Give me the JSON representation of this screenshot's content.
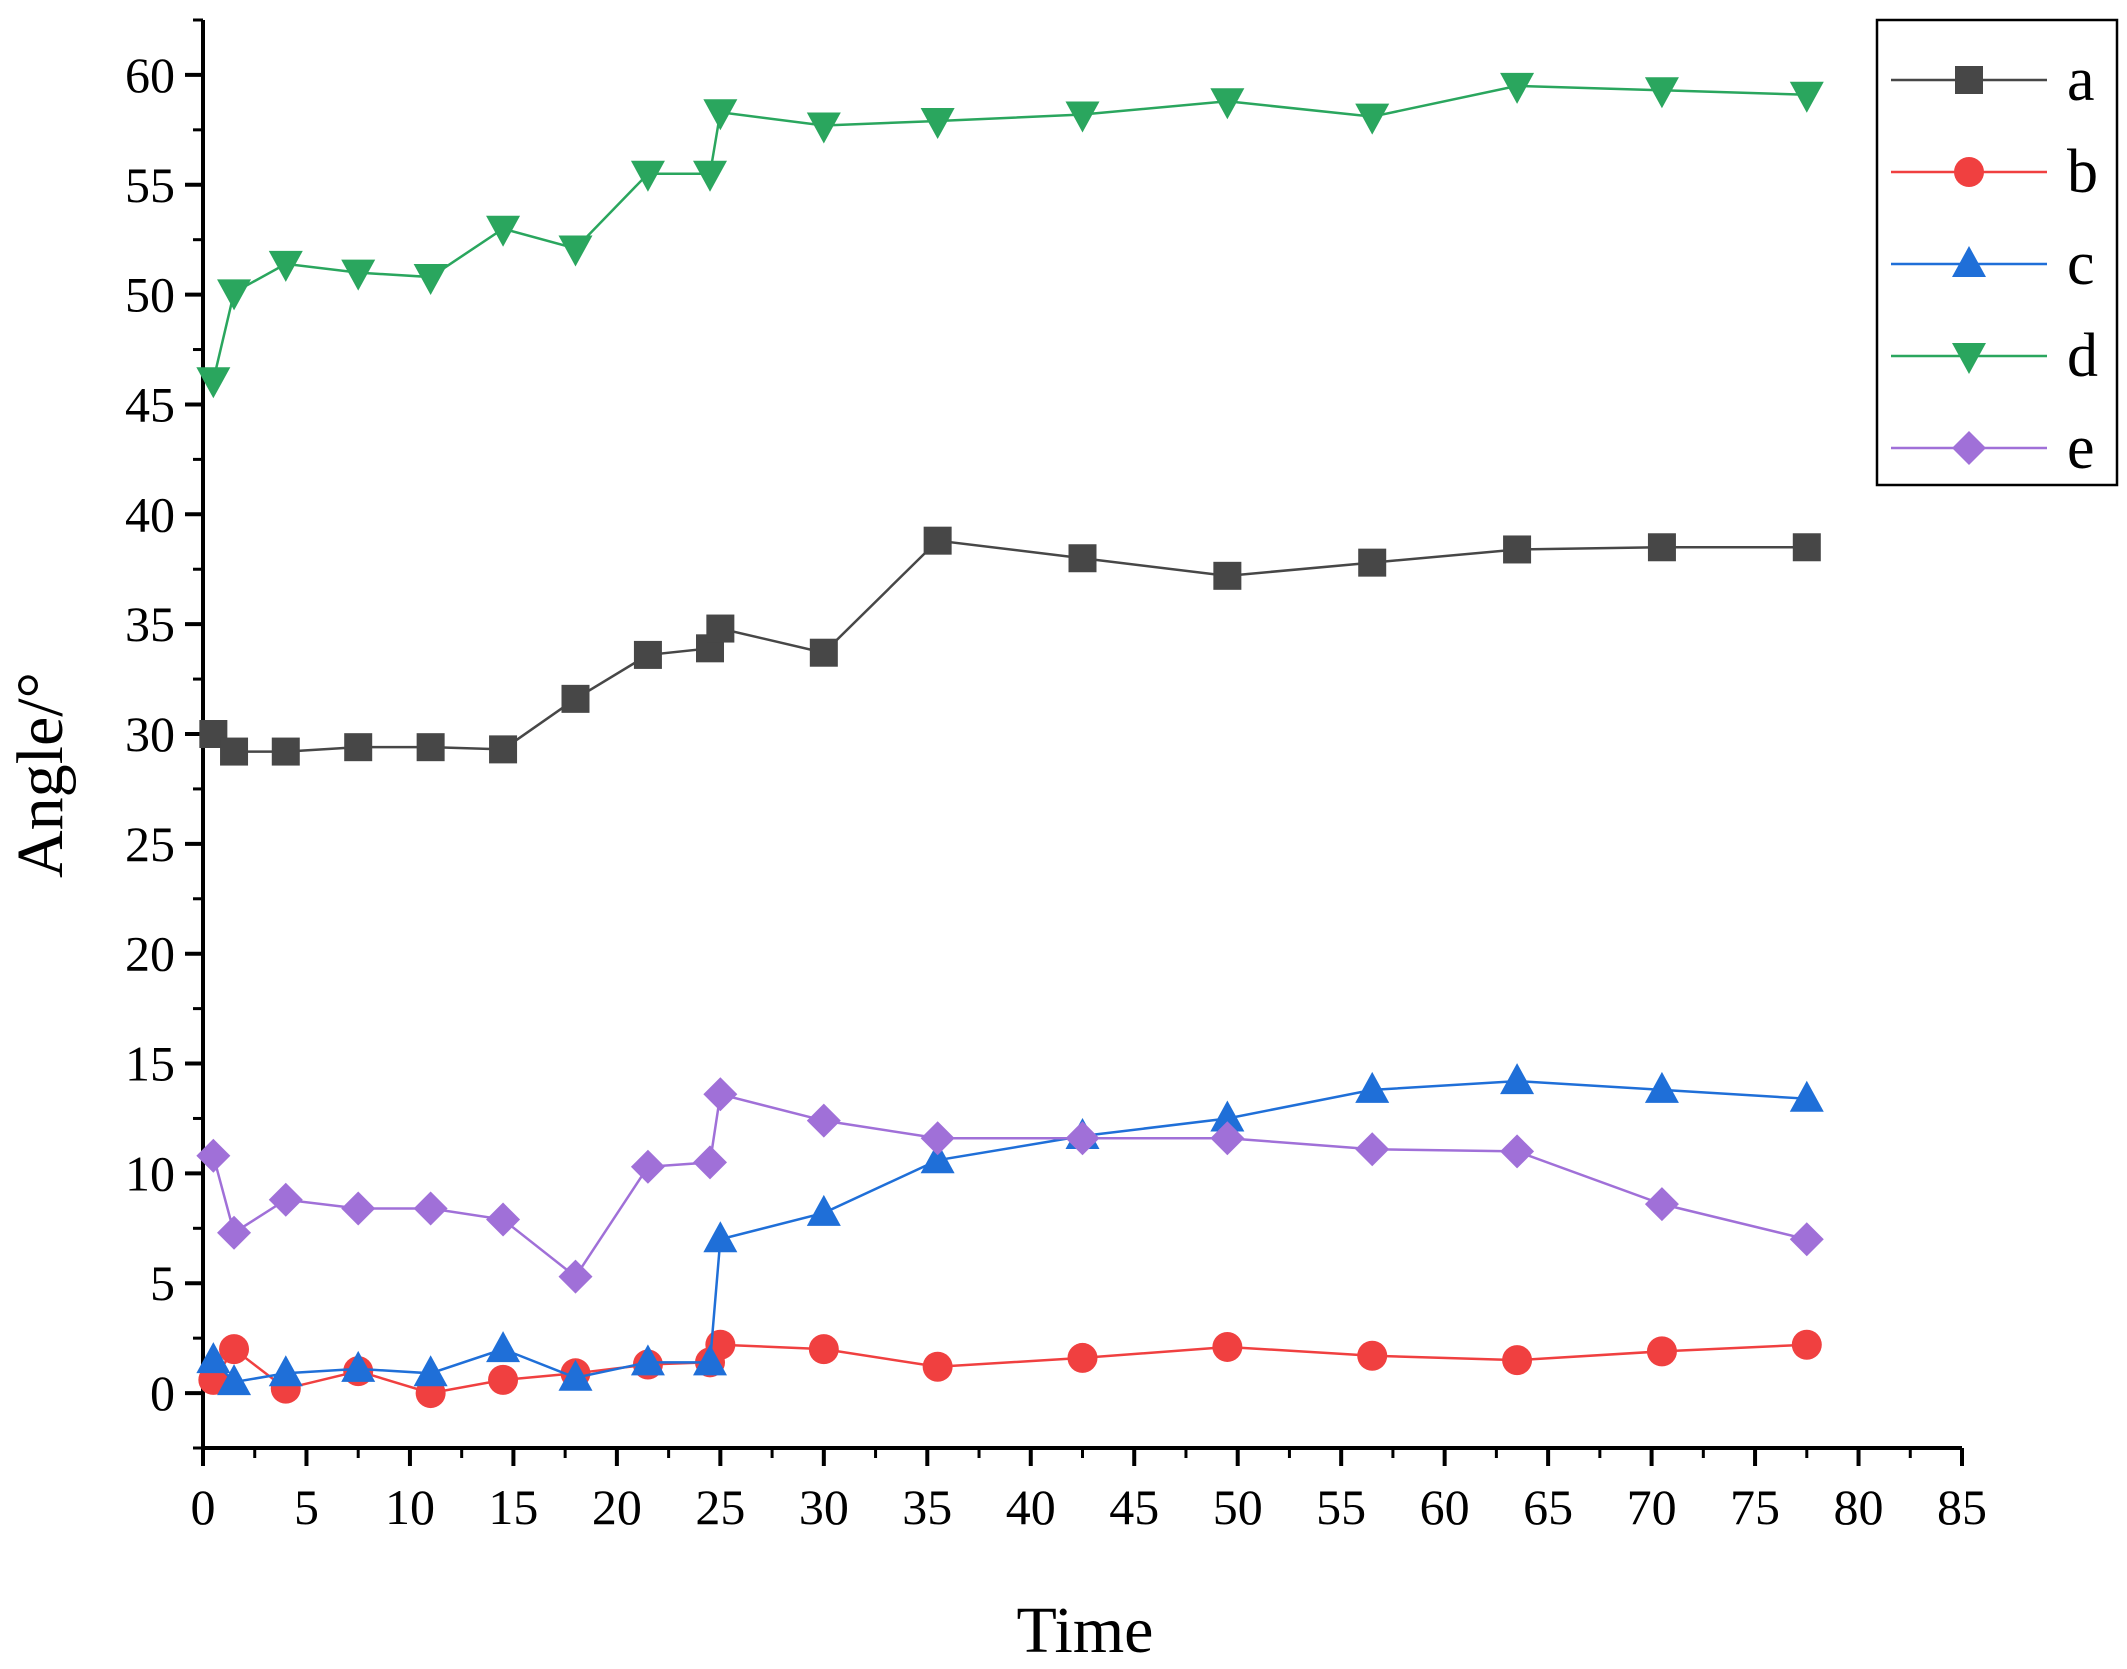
{
  "chart_data": {
    "type": "line",
    "title": "",
    "xlabel": "Time",
    "ylabel": "Angle/°",
    "xlim": [
      0,
      85
    ],
    "ylim": [
      -2.5,
      62.5
    ],
    "xticks": [
      0,
      5,
      10,
      15,
      20,
      25,
      30,
      35,
      40,
      45,
      50,
      55,
      60,
      65,
      70,
      75,
      80,
      85
    ],
    "yticks": [
      0,
      5,
      10,
      15,
      20,
      25,
      30,
      35,
      40,
      45,
      50,
      55,
      60
    ],
    "grid": false,
    "legend_position": "top-right",
    "series": [
      {
        "name": "a",
        "color": "#474747",
        "marker": "square",
        "x": [
          0.5,
          1.5,
          4,
          7.5,
          11,
          14.5,
          18,
          21.5,
          24.5,
          25,
          30,
          35.5,
          42.5,
          49.5,
          56.5,
          63.5,
          70.5,
          77.5
        ],
        "y": [
          30.0,
          29.2,
          29.2,
          29.4,
          29.4,
          29.3,
          31.6,
          33.6,
          33.9,
          34.8,
          33.7,
          38.8,
          38.0,
          37.2,
          37.8,
          38.4,
          38.5,
          38.5
        ]
      },
      {
        "name": "b",
        "color": "#f04040",
        "marker": "circle",
        "x": [
          0.5,
          1.5,
          4,
          7.5,
          11,
          14.5,
          18,
          21.5,
          24.5,
          25,
          30,
          35.5,
          42.5,
          49.5,
          56.5,
          63.5,
          70.5,
          77.5
        ],
        "y": [
          0.6,
          2.0,
          0.2,
          1.0,
          0.0,
          0.6,
          0.9,
          1.3,
          1.4,
          2.2,
          2.0,
          1.2,
          1.6,
          2.1,
          1.7,
          1.5,
          1.9,
          2.2
        ]
      },
      {
        "name": "c",
        "color": "#1f6fd8",
        "marker": "triangle-up",
        "x": [
          0.5,
          1.5,
          4,
          7.5,
          11,
          14.5,
          18,
          21.5,
          24.5,
          25,
          30,
          35.5,
          42.5,
          49.5,
          56.5,
          63.5,
          70.5,
          77.5
        ],
        "y": [
          1.5,
          0.5,
          0.9,
          1.1,
          0.9,
          2.0,
          0.7,
          1.4,
          1.4,
          7.0,
          8.2,
          10.6,
          11.7,
          12.5,
          13.8,
          14.2,
          13.8,
          13.4
        ]
      },
      {
        "name": "d",
        "color": "#2aa65e",
        "marker": "triangle-down",
        "x": [
          0.5,
          1.5,
          4,
          7.5,
          11,
          14.5,
          18,
          21.5,
          24.5,
          25,
          30,
          35.5,
          42.5,
          49.5,
          56.5,
          63.5,
          70.5,
          77.5
        ],
        "y": [
          46.1,
          50.1,
          51.4,
          51.0,
          50.8,
          53.0,
          52.1,
          55.5,
          55.5,
          58.3,
          57.7,
          57.9,
          58.2,
          58.8,
          58.1,
          59.5,
          59.3,
          59.1
        ]
      },
      {
        "name": "e",
        "color": "#a070d8",
        "marker": "diamond",
        "x": [
          0.5,
          1.5,
          4,
          7.5,
          11,
          14.5,
          18,
          21.5,
          24.5,
          25,
          30,
          35.5,
          42.5,
          49.5,
          56.5,
          63.5,
          70.5,
          77.5
        ],
        "y": [
          10.8,
          7.3,
          8.8,
          8.4,
          8.4,
          7.9,
          5.3,
          10.3,
          10.5,
          13.6,
          12.4,
          11.6,
          11.6,
          11.6,
          11.1,
          11.0,
          8.6,
          7.0
        ]
      }
    ]
  }
}
